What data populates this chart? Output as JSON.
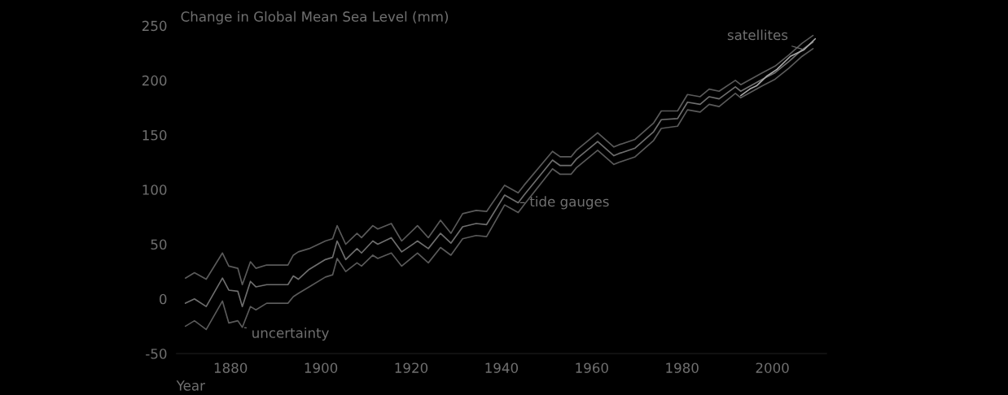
{
  "chart_data": {
    "type": "line",
    "title": "Change in Global Mean Sea Level (mm)",
    "xlabel": "Year",
    "xlim": [
      1868,
      2012
    ],
    "xticks": [
      1880,
      1900,
      1920,
      1940,
      1960,
      1980,
      2000
    ],
    "ylim": [
      -50,
      250
    ],
    "yticks": [
      -50,
      0,
      50,
      100,
      150,
      200,
      250
    ],
    "grid": false,
    "legend": false,
    "marker": "none",
    "line_style": "solid",
    "x": [
      1870,
      1872,
      1874.6,
      1878.2,
      1879.6,
      1881.6,
      1882.6,
      1884.4,
      1885.6,
      1888,
      1892.7,
      1893.9,
      1895,
      1897.4,
      1901,
      1902.6,
      1903.6,
      1905.5,
      1908,
      1909,
      1911.5,
      1912.6,
      1915.6,
      1917.9,
      1921.4,
      1923.8,
      1926.5,
      1928.8,
      1931.4,
      1934.4,
      1936.7,
      1940.7,
      1943.7,
      1945,
      1951.3,
      1953,
      1955.4,
      1956.6,
      1961.3,
      1964.9,
      1966,
      1969.6,
      1973.7,
      1975.4,
      1979,
      1981.2,
      1984,
      1986,
      1988.2,
      1991.8,
      1993,
      1997.8,
      2000.6,
      2003.6,
      2006.6,
      2009
    ],
    "series": [
      {
        "color": "#6e6e6e",
        "values": [
          -4,
          0,
          -7,
          19,
          8,
          7,
          -7,
          16,
          11,
          13,
          13,
          21,
          18,
          27,
          36,
          38,
          53,
          36,
          46,
          42,
          53,
          50,
          56,
          43,
          53,
          46,
          60,
          51,
          66,
          69,
          68,
          95,
          88,
          95,
          127,
          122,
          122,
          128,
          144,
          131,
          133,
          138,
          153,
          164,
          165,
          180,
          178,
          185,
          183,
          194,
          190,
          201,
          207,
          217,
          228,
          235
        ]
      },
      {
        "color": "#5a5a5a",
        "values": [
          19,
          24,
          18,
          42,
          30,
          28,
          13,
          34,
          28,
          31,
          31,
          40,
          43,
          46,
          53,
          55,
          67,
          50,
          60,
          56,
          67,
          64,
          69,
          53,
          67,
          56,
          72,
          60,
          78,
          81,
          80,
          104,
          97,
          104,
          135,
          130,
          130,
          136,
          152,
          139,
          141,
          146,
          161,
          172,
          172,
          187,
          185,
          192,
          190,
          200,
          196,
          207,
          213,
          223,
          234,
          241
        ]
      },
      {
        "color": "#5a5a5a",
        "values": [
          -25,
          -20,
          -28,
          -2,
          -22,
          -20,
          -26,
          -7,
          -10,
          -4,
          -4,
          2,
          5,
          11,
          20,
          22,
          37,
          25,
          33,
          30,
          40,
          37,
          42,
          30,
          42,
          33,
          47,
          40,
          55,
          58,
          57,
          86,
          79,
          86,
          119,
          114,
          114,
          120,
          136,
          123,
          125,
          130,
          145,
          156,
          158,
          173,
          171,
          178,
          176,
          188,
          184,
          195,
          201,
          211,
          222,
          229
        ]
      },
      {
        "color": "#a8a8a8",
        "x": [
          1993,
          1995,
          1996.5,
          1998.8,
          2001,
          2004,
          2007,
          2009.5
        ],
        "values": [
          186,
          192,
          195,
          204,
          210,
          222,
          228,
          238
        ]
      }
    ],
    "annotations": [
      {
        "text": "uncertainty",
        "x": 1882.6,
        "y": -26
      },
      {
        "text": "tide gauges",
        "x": 1943.7,
        "y": 88
      },
      {
        "text": "satellites",
        "x": 2007,
        "y": 228
      }
    ]
  }
}
